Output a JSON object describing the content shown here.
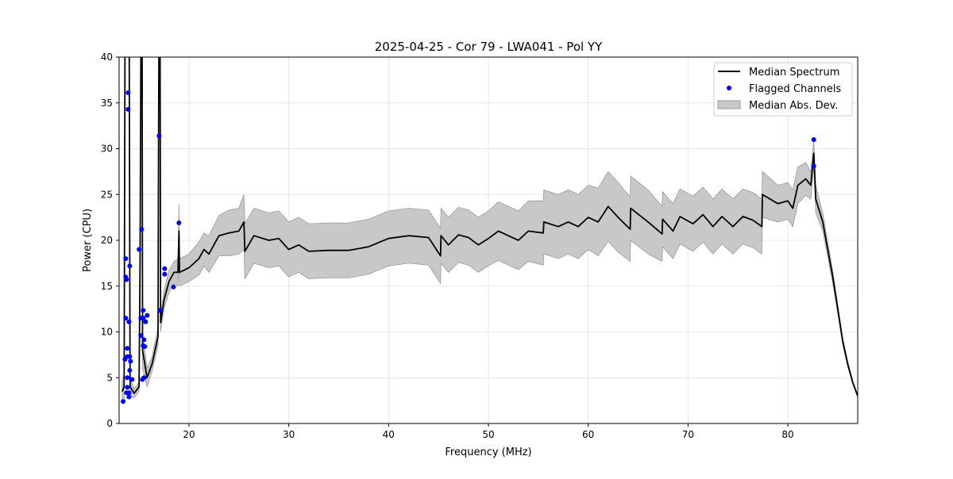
{
  "chart_data": {
    "type": "line",
    "title": "2025-04-25 - Cor 79 - LWA041 - Pol YY",
    "xlabel": "Frequency (MHz)",
    "ylabel": "Power (CPU)",
    "xlim": [
      13,
      87
    ],
    "ylim": [
      0,
      40
    ],
    "xticks": [
      20,
      30,
      40,
      50,
      60,
      70,
      80
    ],
    "yticks": [
      0,
      5,
      10,
      15,
      20,
      25,
      30,
      35,
      40
    ],
    "grid": true,
    "legend_position": "top-right",
    "legend": [
      "Median Spectrum",
      "Flagged Channels",
      "Median Abs. Dev."
    ],
    "colors": {
      "median": "#000000",
      "flagged": "#0000ff",
      "mad_fill": "#c8c8c8",
      "mad_edge": "#9a9a9a",
      "grid": "#e0e0e0"
    },
    "median_spectrum_with_mad": [
      [
        13.3,
        3.5,
        1
      ],
      [
        13.5,
        4,
        1.5
      ],
      [
        13.6,
        45,
        2
      ],
      [
        14.0,
        45,
        2
      ],
      [
        14.1,
        4,
        1
      ],
      [
        14.5,
        3.3,
        0.5
      ],
      [
        15.0,
        4,
        0.5
      ],
      [
        15.1,
        18,
        3
      ],
      [
        15.2,
        45,
        3
      ],
      [
        15.3,
        45,
        3
      ],
      [
        15.35,
        8,
        2
      ],
      [
        15.8,
        5,
        1
      ],
      [
        16.3,
        6.5,
        0.8
      ],
      [
        16.9,
        9.5,
        1
      ],
      [
        16.95,
        30,
        2
      ],
      [
        17.0,
        45,
        2
      ],
      [
        17.1,
        45,
        2
      ],
      [
        17.15,
        11,
        1
      ],
      [
        17.5,
        13.5,
        1
      ],
      [
        18,
        15.5,
        1.2
      ],
      [
        18.5,
        16.5,
        1.2
      ],
      [
        18.9,
        16.5,
        1.5
      ],
      [
        19.0,
        21,
        3
      ],
      [
        19.05,
        16.5,
        1.5
      ],
      [
        20,
        17,
        1.5
      ],
      [
        21,
        18,
        1.8
      ],
      [
        21.5,
        19,
        1.8
      ],
      [
        22,
        18.5,
        2
      ],
      [
        23,
        20.5,
        2.2
      ],
      [
        24,
        20.8,
        2.5
      ],
      [
        25,
        21,
        2.5
      ],
      [
        25.5,
        22,
        3
      ],
      [
        25.6,
        18.8,
        3
      ],
      [
        26.5,
        20.5,
        3
      ],
      [
        28,
        20,
        3
      ],
      [
        29,
        20.2,
        3
      ],
      [
        30,
        19,
        3
      ],
      [
        31,
        19.5,
        3
      ],
      [
        32,
        18.8,
        3
      ],
      [
        34,
        18.9,
        3
      ],
      [
        36,
        18.9,
        3
      ],
      [
        38,
        19.3,
        3
      ],
      [
        40,
        20.2,
        3
      ],
      [
        42,
        20.5,
        3
      ],
      [
        44,
        20.3,
        3
      ],
      [
        45.2,
        18.3,
        3
      ],
      [
        45.25,
        20.5,
        3
      ],
      [
        46,
        19.5,
        3
      ],
      [
        47,
        20.6,
        3
      ],
      [
        48,
        20.3,
        3
      ],
      [
        49,
        19.5,
        3
      ],
      [
        50,
        20.2,
        3
      ],
      [
        51,
        21,
        3.2
      ],
      [
        52,
        20.5,
        3.2
      ],
      [
        53,
        20,
        3.2
      ],
      [
        54,
        21,
        3.3
      ],
      [
        55.5,
        20.8,
        3.5
      ],
      [
        55.55,
        22,
        3.5
      ],
      [
        57,
        21.5,
        3.5
      ],
      [
        58,
        22,
        3.5
      ],
      [
        59,
        21.5,
        3.5
      ],
      [
        60,
        22.5,
        3.5
      ],
      [
        61,
        22,
        3.7
      ],
      [
        62,
        23.7,
        3.8
      ],
      [
        63,
        22.5,
        3.8
      ],
      [
        64.2,
        21.2,
        3.5
      ],
      [
        64.25,
        23.5,
        3.5
      ],
      [
        66,
        22,
        3.5
      ],
      [
        67.4,
        20.7,
        3
      ],
      [
        67.45,
        22.3,
        3
      ],
      [
        68.5,
        21,
        3
      ],
      [
        69.2,
        22.6,
        3
      ],
      [
        70.5,
        21.8,
        3
      ],
      [
        71.5,
        22.8,
        3
      ],
      [
        72.5,
        21.5,
        3
      ],
      [
        73.4,
        22.6,
        3
      ],
      [
        74.5,
        21.5,
        3
      ],
      [
        75.5,
        22.6,
        3
      ],
      [
        76.5,
        22.2,
        3
      ],
      [
        77.4,
        21.5,
        3
      ],
      [
        77.45,
        25,
        2.5
      ],
      [
        79,
        24,
        2
      ],
      [
        80,
        24.3,
        2
      ],
      [
        80.5,
        23.5,
        2
      ],
      [
        81,
        26,
        2
      ],
      [
        81.8,
        26.7,
        1.8
      ],
      [
        82.3,
        26,
        1.5
      ],
      [
        82.6,
        29.5,
        1.5
      ],
      [
        82.8,
        24.5,
        1.5
      ],
      [
        83.5,
        22,
        1
      ],
      [
        84,
        19,
        0.8
      ],
      [
        84.5,
        16,
        0.7
      ],
      [
        85,
        12.5,
        0.5
      ],
      [
        85.5,
        9,
        0.4
      ],
      [
        86,
        6.5,
        0.3
      ],
      [
        86.5,
        4.5,
        0.2
      ],
      [
        87,
        3,
        0.1
      ]
    ],
    "flagged_channels": [
      [
        13.4,
        2.4
      ],
      [
        13.9,
        36.1
      ],
      [
        13.9,
        34.3
      ],
      [
        13.66,
        18.0
      ],
      [
        14.06,
        17.2
      ],
      [
        13.66,
        16.0
      ],
      [
        13.74,
        15.7
      ],
      [
        13.66,
        11.5
      ],
      [
        13.98,
        11.1
      ],
      [
        13.82,
        8.2
      ],
      [
        13.58,
        7.0
      ],
      [
        13.82,
        7.3
      ],
      [
        14.06,
        7.3
      ],
      [
        14.14,
        6.8
      ],
      [
        14.06,
        5.8
      ],
      [
        13.82,
        5.0
      ],
      [
        14.3,
        4.8
      ],
      [
        13.82,
        3.95
      ],
      [
        13.74,
        3.35
      ],
      [
        13.98,
        3.35
      ],
      [
        13.98,
        2.9
      ],
      [
        15.25,
        21.2
      ],
      [
        15.0,
        19.0
      ],
      [
        15.41,
        12.35
      ],
      [
        15.81,
        11.8
      ],
      [
        15.17,
        11.5
      ],
      [
        15.41,
        11.5
      ],
      [
        15.65,
        11.1
      ],
      [
        15.17,
        9.6
      ],
      [
        15.49,
        9.15
      ],
      [
        15.41,
        8.5
      ],
      [
        15.57,
        8.4
      ],
      [
        15.49,
        5.0
      ],
      [
        15.33,
        4.8
      ],
      [
        17.0,
        31.4
      ],
      [
        17.08,
        12.35
      ],
      [
        17.56,
        16.9
      ],
      [
        17.56,
        16.3
      ],
      [
        18.44,
        14.9
      ],
      [
        18.99,
        21.9
      ],
      [
        82.6,
        31.0
      ],
      [
        82.6,
        28.1
      ]
    ]
  }
}
